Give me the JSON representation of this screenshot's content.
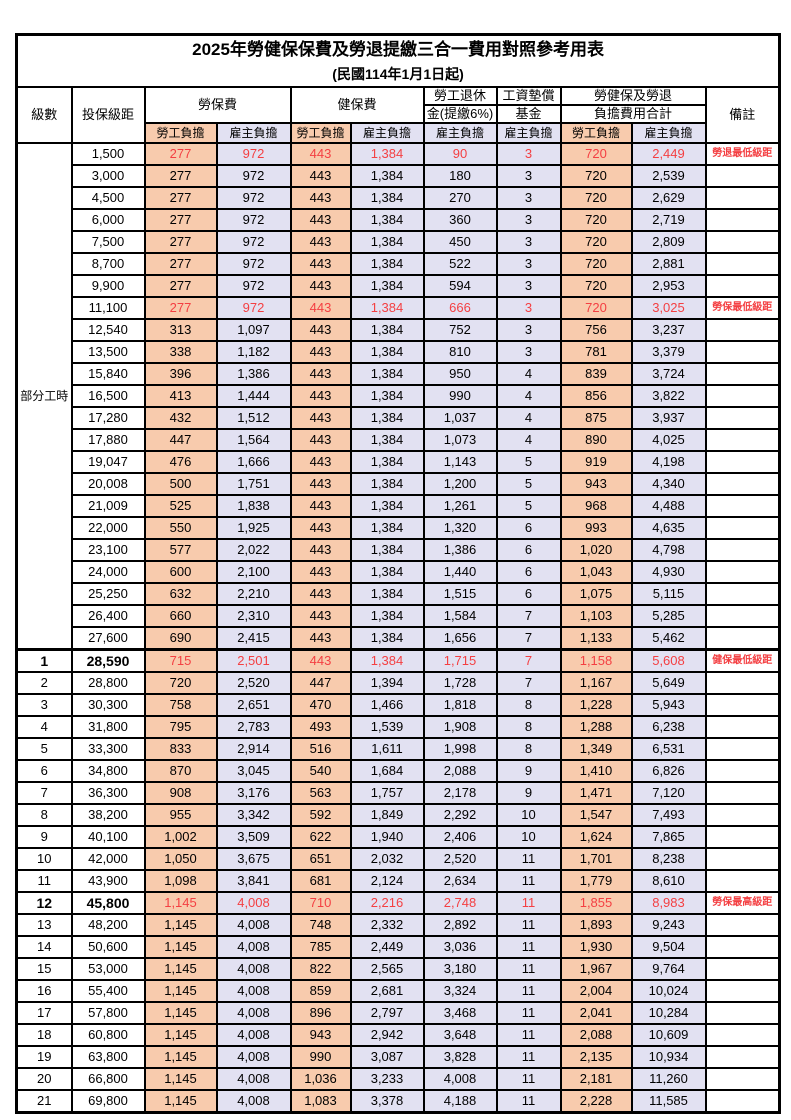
{
  "title": "2025年勞健保保費及勞退提繳三合一費用對照參考用表",
  "subtitle": "(民國114年1月1日起)",
  "header": {
    "level": "級數",
    "salary": "投保級距",
    "labor_fee": "勞保費",
    "health_fee": "健保費",
    "pension_line1": "勞工退休",
    "pension_line2": "金(提繳6%)",
    "wage_fund_line1": "工資墊償",
    "wage_fund_line2": "基金",
    "total_line1": "勞健保及勞退",
    "total_line2": "負擔費用合計",
    "note": "備註",
    "employee": "勞工負擔",
    "employer": "雇主負擔"
  },
  "group_label": "部分工時",
  "group_rowspan": 23,
  "colors": {
    "employee_bg": "#F8CBAD",
    "employer_bg": "#E2E1F2",
    "highlight_red": "#F43F42"
  },
  "rows": [
    {
      "salary": "1,500",
      "v": [
        "277",
        "972",
        "443",
        "1,384",
        "90",
        "3",
        "720",
        "2,449"
      ],
      "note": "勞退最低級距",
      "red": true
    },
    {
      "salary": "3,000",
      "v": [
        "277",
        "972",
        "443",
        "1,384",
        "180",
        "3",
        "720",
        "2,539"
      ]
    },
    {
      "salary": "4,500",
      "v": [
        "277",
        "972",
        "443",
        "1,384",
        "270",
        "3",
        "720",
        "2,629"
      ]
    },
    {
      "salary": "6,000",
      "v": [
        "277",
        "972",
        "443",
        "1,384",
        "360",
        "3",
        "720",
        "2,719"
      ]
    },
    {
      "salary": "7,500",
      "v": [
        "277",
        "972",
        "443",
        "1,384",
        "450",
        "3",
        "720",
        "2,809"
      ]
    },
    {
      "salary": "8,700",
      "v": [
        "277",
        "972",
        "443",
        "1,384",
        "522",
        "3",
        "720",
        "2,881"
      ]
    },
    {
      "salary": "9,900",
      "v": [
        "277",
        "972",
        "443",
        "1,384",
        "594",
        "3",
        "720",
        "2,953"
      ]
    },
    {
      "salary": "11,100",
      "v": [
        "277",
        "972",
        "443",
        "1,384",
        "666",
        "3",
        "720",
        "3,025"
      ],
      "note": "勞保最低級距",
      "red": true
    },
    {
      "salary": "12,540",
      "v": [
        "313",
        "1,097",
        "443",
        "1,384",
        "752",
        "3",
        "756",
        "3,237"
      ]
    },
    {
      "salary": "13,500",
      "v": [
        "338",
        "1,182",
        "443",
        "1,384",
        "810",
        "3",
        "781",
        "3,379"
      ]
    },
    {
      "salary": "15,840",
      "v": [
        "396",
        "1,386",
        "443",
        "1,384",
        "950",
        "4",
        "839",
        "3,724"
      ]
    },
    {
      "salary": "16,500",
      "v": [
        "413",
        "1,444",
        "443",
        "1,384",
        "990",
        "4",
        "856",
        "3,822"
      ]
    },
    {
      "salary": "17,280",
      "v": [
        "432",
        "1,512",
        "443",
        "1,384",
        "1,037",
        "4",
        "875",
        "3,937"
      ]
    },
    {
      "salary": "17,880",
      "v": [
        "447",
        "1,564",
        "443",
        "1,384",
        "1,073",
        "4",
        "890",
        "4,025"
      ]
    },
    {
      "salary": "19,047",
      "v": [
        "476",
        "1,666",
        "443",
        "1,384",
        "1,143",
        "5",
        "919",
        "4,198"
      ]
    },
    {
      "salary": "20,008",
      "v": [
        "500",
        "1,751",
        "443",
        "1,384",
        "1,200",
        "5",
        "943",
        "4,340"
      ]
    },
    {
      "salary": "21,009",
      "v": [
        "525",
        "1,838",
        "443",
        "1,384",
        "1,261",
        "5",
        "968",
        "4,488"
      ]
    },
    {
      "salary": "22,000",
      "v": [
        "550",
        "1,925",
        "443",
        "1,384",
        "1,320",
        "6",
        "993",
        "4,635"
      ]
    },
    {
      "salary": "23,100",
      "v": [
        "577",
        "2,022",
        "443",
        "1,384",
        "1,386",
        "6",
        "1,020",
        "4,798"
      ]
    },
    {
      "salary": "24,000",
      "v": [
        "600",
        "2,100",
        "443",
        "1,384",
        "1,440",
        "6",
        "1,043",
        "4,930"
      ]
    },
    {
      "salary": "25,250",
      "v": [
        "632",
        "2,210",
        "443",
        "1,384",
        "1,515",
        "6",
        "1,075",
        "5,115"
      ]
    },
    {
      "salary": "26,400",
      "v": [
        "660",
        "2,310",
        "443",
        "1,384",
        "1,584",
        "7",
        "1,103",
        "5,285"
      ]
    },
    {
      "salary": "27,600",
      "v": [
        "690",
        "2,415",
        "443",
        "1,384",
        "1,656",
        "7",
        "1,133",
        "5,462"
      ]
    },
    {
      "level": "1",
      "salary": "28,590",
      "v": [
        "715",
        "2,501",
        "443",
        "1,384",
        "1,715",
        "7",
        "1,158",
        "5,608"
      ],
      "note": "健保最低級距",
      "red": true,
      "bold": true,
      "sep": true
    },
    {
      "level": "2",
      "salary": "28,800",
      "v": [
        "720",
        "2,520",
        "447",
        "1,394",
        "1,728",
        "7",
        "1,167",
        "5,649"
      ]
    },
    {
      "level": "3",
      "salary": "30,300",
      "v": [
        "758",
        "2,651",
        "470",
        "1,466",
        "1,818",
        "8",
        "1,228",
        "5,943"
      ]
    },
    {
      "level": "4",
      "salary": "31,800",
      "v": [
        "795",
        "2,783",
        "493",
        "1,539",
        "1,908",
        "8",
        "1,288",
        "6,238"
      ]
    },
    {
      "level": "5",
      "salary": "33,300",
      "v": [
        "833",
        "2,914",
        "516",
        "1,611",
        "1,998",
        "8",
        "1,349",
        "6,531"
      ]
    },
    {
      "level": "6",
      "salary": "34,800",
      "v": [
        "870",
        "3,045",
        "540",
        "1,684",
        "2,088",
        "9",
        "1,410",
        "6,826"
      ]
    },
    {
      "level": "7",
      "salary": "36,300",
      "v": [
        "908",
        "3,176",
        "563",
        "1,757",
        "2,178",
        "9",
        "1,471",
        "7,120"
      ]
    },
    {
      "level": "8",
      "salary": "38,200",
      "v": [
        "955",
        "3,342",
        "592",
        "1,849",
        "2,292",
        "10",
        "1,547",
        "7,493"
      ]
    },
    {
      "level": "9",
      "salary": "40,100",
      "v": [
        "1,002",
        "3,509",
        "622",
        "1,940",
        "2,406",
        "10",
        "1,624",
        "7,865"
      ]
    },
    {
      "level": "10",
      "salary": "42,000",
      "v": [
        "1,050",
        "3,675",
        "651",
        "2,032",
        "2,520",
        "11",
        "1,701",
        "8,238"
      ]
    },
    {
      "level": "11",
      "salary": "43,900",
      "v": [
        "1,098",
        "3,841",
        "681",
        "2,124",
        "2,634",
        "11",
        "1,779",
        "8,610"
      ]
    },
    {
      "level": "12",
      "salary": "45,800",
      "v": [
        "1,145",
        "4,008",
        "710",
        "2,216",
        "2,748",
        "11",
        "1,855",
        "8,983"
      ],
      "note": "勞保最高級距",
      "red": true,
      "bold": true
    },
    {
      "level": "13",
      "salary": "48,200",
      "v": [
        "1,145",
        "4,008",
        "748",
        "2,332",
        "2,892",
        "11",
        "1,893",
        "9,243"
      ]
    },
    {
      "level": "14",
      "salary": "50,600",
      "v": [
        "1,145",
        "4,008",
        "785",
        "2,449",
        "3,036",
        "11",
        "1,930",
        "9,504"
      ]
    },
    {
      "level": "15",
      "salary": "53,000",
      "v": [
        "1,145",
        "4,008",
        "822",
        "2,565",
        "3,180",
        "11",
        "1,967",
        "9,764"
      ]
    },
    {
      "level": "16",
      "salary": "55,400",
      "v": [
        "1,145",
        "4,008",
        "859",
        "2,681",
        "3,324",
        "11",
        "2,004",
        "10,024"
      ]
    },
    {
      "level": "17",
      "salary": "57,800",
      "v": [
        "1,145",
        "4,008",
        "896",
        "2,797",
        "3,468",
        "11",
        "2,041",
        "10,284"
      ]
    },
    {
      "level": "18",
      "salary": "60,800",
      "v": [
        "1,145",
        "4,008",
        "943",
        "2,942",
        "3,648",
        "11",
        "2,088",
        "10,609"
      ]
    },
    {
      "level": "19",
      "salary": "63,800",
      "v": [
        "1,145",
        "4,008",
        "990",
        "3,087",
        "3,828",
        "11",
        "2,135",
        "10,934"
      ]
    },
    {
      "level": "20",
      "salary": "66,800",
      "v": [
        "1,145",
        "4,008",
        "1,036",
        "3,233",
        "4,008",
        "11",
        "2,181",
        "11,260"
      ]
    },
    {
      "level": "21",
      "salary": "69,800",
      "v": [
        "1,145",
        "4,008",
        "1,083",
        "3,378",
        "4,188",
        "11",
        "2,228",
        "11,585"
      ]
    }
  ]
}
